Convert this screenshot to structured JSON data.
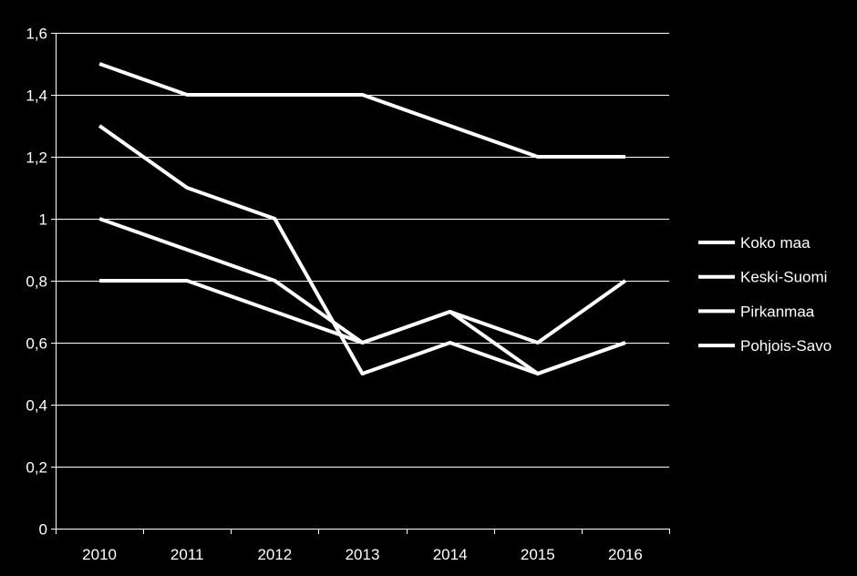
{
  "chart_data": {
    "type": "line",
    "title": "",
    "xlabel": "",
    "ylabel": "",
    "categories": [
      "2010",
      "2011",
      "2012",
      "2013",
      "2014",
      "2015",
      "2016"
    ],
    "ylim": [
      0,
      1.6
    ],
    "yticks": [
      0,
      0.2,
      0.4,
      0.6,
      0.8,
      1,
      1.2,
      1.4,
      1.6
    ],
    "ytick_labels": [
      "0",
      "0,2",
      "0,4",
      "0,6",
      "0,8",
      "1",
      "1,2",
      "1,4",
      "1,6"
    ],
    "grid": true,
    "legend_position": "right",
    "colors": {
      "background": "#000000",
      "text": "#ffffff",
      "gridline": "#ffffff",
      "series": "#ffffff"
    },
    "series": [
      {
        "name": "Koko maa",
        "values": [
          0.8,
          0.8,
          0.7,
          0.6,
          0.7,
          0.6,
          0.8
        ]
      },
      {
        "name": "Keski-Suomi",
        "values": [
          1.3,
          1.1,
          1.0,
          0.5,
          0.6,
          0.5,
          0.6
        ]
      },
      {
        "name": "Pirkanmaa",
        "values": [
          1.0,
          0.9,
          0.8,
          0.6,
          0.7,
          0.5,
          0.6
        ]
      },
      {
        "name": "Pohjois-Savo",
        "values": [
          1.5,
          1.4,
          1.4,
          1.4,
          1.3,
          1.2,
          1.2
        ]
      }
    ]
  }
}
